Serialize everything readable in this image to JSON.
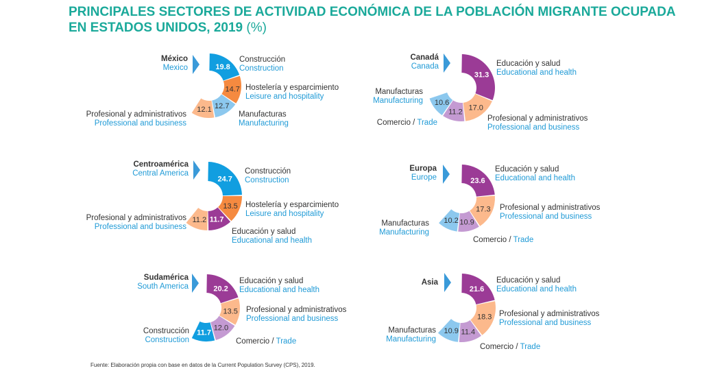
{
  "title": "PRINCIPALES SECTORES DE ACTIVIDAD ECONÓMICA DE LA POBLACIÓN MIGRANTE OCUPADA EN ESTADOS UNIDOS, 2019",
  "title_unit": "(%)",
  "source": "Fuente: Elaboración propia con base en datos de la Current Population Survey (CPS), 2019.",
  "colors": {
    "construction": "#119ee0",
    "leisure": "#f58a40",
    "manufacturing": "#8cc8ee",
    "professional": "#fcb98c",
    "education": "#9b3b96",
    "trade": "#c49ad2",
    "title": "#1aa99a",
    "english_text": "#1f9ad6"
  },
  "chart_data": [
    {
      "type": "pie",
      "region": "México",
      "region_en": "Mexico",
      "slices": [
        {
          "value": 19.8,
          "label": "19.8",
          "name": "Construcción",
          "name_en": "Construction",
          "color": "#119ee0"
        },
        {
          "value": 14.7,
          "label": "14.7",
          "name": "Hostelería y esparcimiento",
          "name_en": "Leisure and hospitality",
          "color": "#f58a40"
        },
        {
          "value": 12.7,
          "label": "12.7",
          "name": "Manufacturas",
          "name_en": "Manufacturing",
          "color": "#8cc8ee"
        },
        {
          "value": 12.1,
          "label": "12.1",
          "name": "Profesional y administrativos",
          "name_en": "Professional and business",
          "color": "#fcb98c"
        }
      ]
    },
    {
      "type": "pie",
      "region": "Canadá",
      "region_en": "Canada",
      "slices": [
        {
          "value": 31.3,
          "label": "31.3",
          "name": "Educación y salud",
          "name_en": "Educational and health",
          "color": "#9b3b96"
        },
        {
          "value": 17.0,
          "label": "17.0",
          "name": "Profesional y administrativos",
          "name_en": "Professional and business",
          "color": "#fcb98c"
        },
        {
          "value": 11.2,
          "label": "11.2",
          "name": "Comercio",
          "name_en": "Trade",
          "color": "#c49ad2"
        },
        {
          "value": 10.6,
          "label": "10.6",
          "name": "Manufacturas",
          "name_en": "Manufacturing",
          "color": "#8cc8ee"
        }
      ]
    },
    {
      "type": "pie",
      "region": "Centroamérica",
      "region_en": "Central America",
      "slices": [
        {
          "value": 24.7,
          "label": "24.7",
          "name": "Construcción",
          "name_en": "Construction",
          "color": "#119ee0"
        },
        {
          "value": 13.5,
          "label": "13.5",
          "name": "Hostelería y esparcimiento",
          "name_en": "Leisure and hospitality",
          "color": "#f58a40"
        },
        {
          "value": 11.7,
          "label": "11.7",
          "name": "Educación y salud",
          "name_en": "Educational and health",
          "color": "#9b3b96"
        },
        {
          "value": 11.2,
          "label": "11.2",
          "name": "Profesional y administrativos",
          "name_en": "Professional and business",
          "color": "#fcb98c"
        }
      ]
    },
    {
      "type": "pie",
      "region": "Europa",
      "region_en": "Europe",
      "slices": [
        {
          "value": 23.6,
          "label": "23.6",
          "name": "Educación y salud",
          "name_en": "Educational and health",
          "color": "#9b3b96"
        },
        {
          "value": 17.3,
          "label": "17.3",
          "name": "Profesional y administrativos",
          "name_en": "Professional and business",
          "color": "#fcb98c"
        },
        {
          "value": 10.9,
          "label": "10.9",
          "name": "Comercio",
          "name_en": "Trade",
          "color": "#c49ad2"
        },
        {
          "value": 10.2,
          "label": "10.2",
          "name": "Manufacturas",
          "name_en": "Manufacturing",
          "color": "#8cc8ee"
        }
      ]
    },
    {
      "type": "pie",
      "region": "Sudamérica",
      "region_en": "South America",
      "slices": [
        {
          "value": 20.2,
          "label": "20.2",
          "name": "Educación y salud",
          "name_en": "Educational and health",
          "color": "#9b3b96"
        },
        {
          "value": 13.5,
          "label": "13.5",
          "name": "Profesional y administrativos",
          "name_en": "Professional and business",
          "color": "#fcb98c"
        },
        {
          "value": 12.0,
          "label": "12.0",
          "name": "Comercio",
          "name_en": "Trade",
          "color": "#c49ad2"
        },
        {
          "value": 11.7,
          "label": "11.7",
          "name": "Construcción",
          "name_en": "Construction",
          "color": "#119ee0"
        }
      ]
    },
    {
      "type": "pie",
      "region": "Asia",
      "region_en": "",
      "slices": [
        {
          "value": 21.6,
          "label": "21.6",
          "name": "Educación y salud",
          "name_en": "Educational and health",
          "color": "#9b3b96"
        },
        {
          "value": 18.3,
          "label": "18.3",
          "name": "Profesional y administrativos",
          "name_en": "Professional and business",
          "color": "#fcb98c"
        },
        {
          "value": 11.4,
          "label": "11.4",
          "name": "Comercio",
          "name_en": "Trade",
          "color": "#c49ad2"
        },
        {
          "value": 10.9,
          "label": "10.9",
          "name": "Manufacturas",
          "name_en": "Manufacturing",
          "color": "#8cc8ee"
        }
      ]
    }
  ]
}
